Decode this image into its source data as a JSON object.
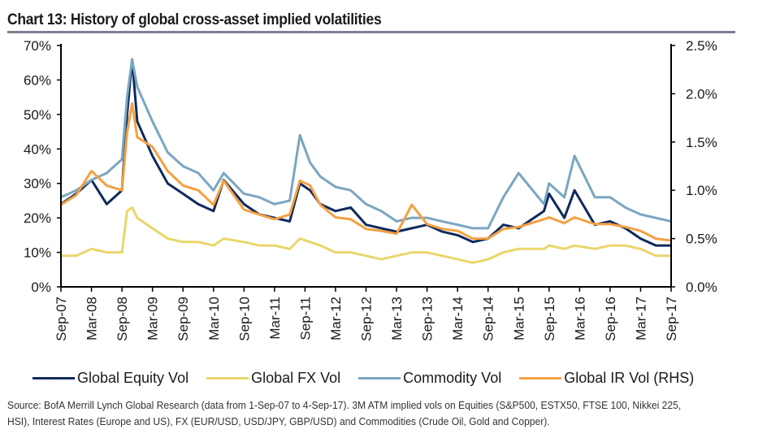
{
  "chart_data": {
    "type": "line",
    "title": "Chart 13: History of global cross-asset implied volatilities",
    "xlabel": "",
    "ylabel": "",
    "x_tick_labels": [
      "Sep-07",
      "Mar-08",
      "Sep-08",
      "Mar-09",
      "Sep-09",
      "Mar-10",
      "Sep-10",
      "Mar-11",
      "Sep-11",
      "Mar-12",
      "Sep-12",
      "Mar-13",
      "Sep-13",
      "Mar-14",
      "Sep-14",
      "Mar-15",
      "Sep-15",
      "Mar-16",
      "Sep-16",
      "Mar-17",
      "Sep-17"
    ],
    "y_left": {
      "ylim": [
        0,
        70
      ],
      "ticks": [
        "0%",
        "10%",
        "20%",
        "30%",
        "40%",
        "50%",
        "60%",
        "70%"
      ]
    },
    "y_right": {
      "ylim": [
        0,
        2.5
      ],
      "ticks": [
        "0.0%",
        "0.5%",
        "1.0%",
        "1.5%",
        "2.0%",
        "2.5%"
      ]
    },
    "x": [
      "Sep-07",
      "Dec-07",
      "Mar-08",
      "Jun-08",
      "Sep-08",
      "Oct-08",
      "Nov-08",
      "Dec-08",
      "Mar-09",
      "Jun-09",
      "Sep-09",
      "Dec-09",
      "Mar-10",
      "May-10",
      "Sep-10",
      "Dec-10",
      "Mar-11",
      "Jun-11",
      "Aug-11",
      "Oct-11",
      "Dec-11",
      "Mar-12",
      "Jun-12",
      "Sep-12",
      "Dec-12",
      "Mar-13",
      "Jun-13",
      "Sep-13",
      "Dec-13",
      "Mar-14",
      "Jun-14",
      "Sep-14",
      "Dec-14",
      "Mar-15",
      "Aug-15",
      "Sep-15",
      "Dec-15",
      "Feb-16",
      "Jun-16",
      "Sep-16",
      "Dec-16",
      "Mar-17",
      "Jun-17",
      "Sep-17"
    ],
    "series": [
      {
        "name": "Global Equity Vol",
        "axis": "left",
        "color": "#0d2a5c",
        "values": [
          24,
          27,
          31,
          24,
          28,
          50,
          66,
          48,
          38,
          30,
          27,
          24,
          22,
          31,
          24,
          21,
          20,
          19,
          30,
          28,
          24,
          22,
          23,
          18,
          17,
          16,
          17,
          18,
          16,
          15,
          13,
          14,
          18,
          17,
          22,
          27,
          20,
          28,
          18,
          19,
          17,
          14,
          12,
          12
        ]
      },
      {
        "name": "Global FX Vol",
        "axis": "left",
        "color": "#e9d66b",
        "values": [
          9,
          9,
          11,
          10,
          10,
          22,
          23,
          20,
          17,
          14,
          13,
          13,
          12,
          14,
          13,
          12,
          12,
          11,
          14,
          13,
          12,
          10,
          10,
          9,
          8,
          9,
          10,
          10,
          9,
          8,
          7,
          8,
          10,
          11,
          11,
          12,
          11,
          12,
          11,
          12,
          12,
          11,
          9,
          9
        ]
      },
      {
        "name": "Commodity Vol",
        "axis": "left",
        "color": "#7aa6c2",
        "values": [
          26,
          28,
          31,
          33,
          37,
          55,
          66,
          58,
          48,
          39,
          35,
          33,
          28,
          33,
          27,
          26,
          24,
          25,
          44,
          36,
          32,
          29,
          28,
          24,
          22,
          19,
          20,
          20,
          19,
          18,
          17,
          17,
          26,
          33,
          24,
          30,
          26,
          38,
          26,
          26,
          23,
          21,
          20,
          19
        ]
      },
      {
        "name": "Global IR Vol (RHS)",
        "axis": "right",
        "color": "#f4a043",
        "values": [
          0.85,
          0.95,
          1.2,
          1.05,
          1.0,
          1.6,
          1.9,
          1.55,
          1.45,
          1.2,
          1.05,
          1.0,
          0.85,
          1.1,
          0.8,
          0.75,
          0.7,
          0.75,
          1.1,
          1.05,
          0.85,
          0.72,
          0.7,
          0.6,
          0.58,
          0.55,
          0.85,
          0.65,
          0.6,
          0.58,
          0.5,
          0.5,
          0.6,
          0.62,
          0.7,
          0.72,
          0.66,
          0.72,
          0.65,
          0.65,
          0.62,
          0.58,
          0.5,
          0.48
        ]
      }
    ],
    "legend": [
      "Global Equity Vol",
      "Global FX Vol",
      "Commodity Vol",
      "Global IR Vol (RHS)"
    ],
    "legend_position": "bottom",
    "grid": false
  },
  "source_note": "Source: BofA Merrill Lynch Global Research (data from 1-Sep-07 to 4-Sep-17). 3M ATM implied vols on Equities (S&P500, ESTX50, FTSE 100, Nikkei 225, HSI), Interest Rates (Europe and US), FX (EUR/USD, USD/JPY, GBP/USD) and Commodities (Crude Oil, Gold and Copper)."
}
